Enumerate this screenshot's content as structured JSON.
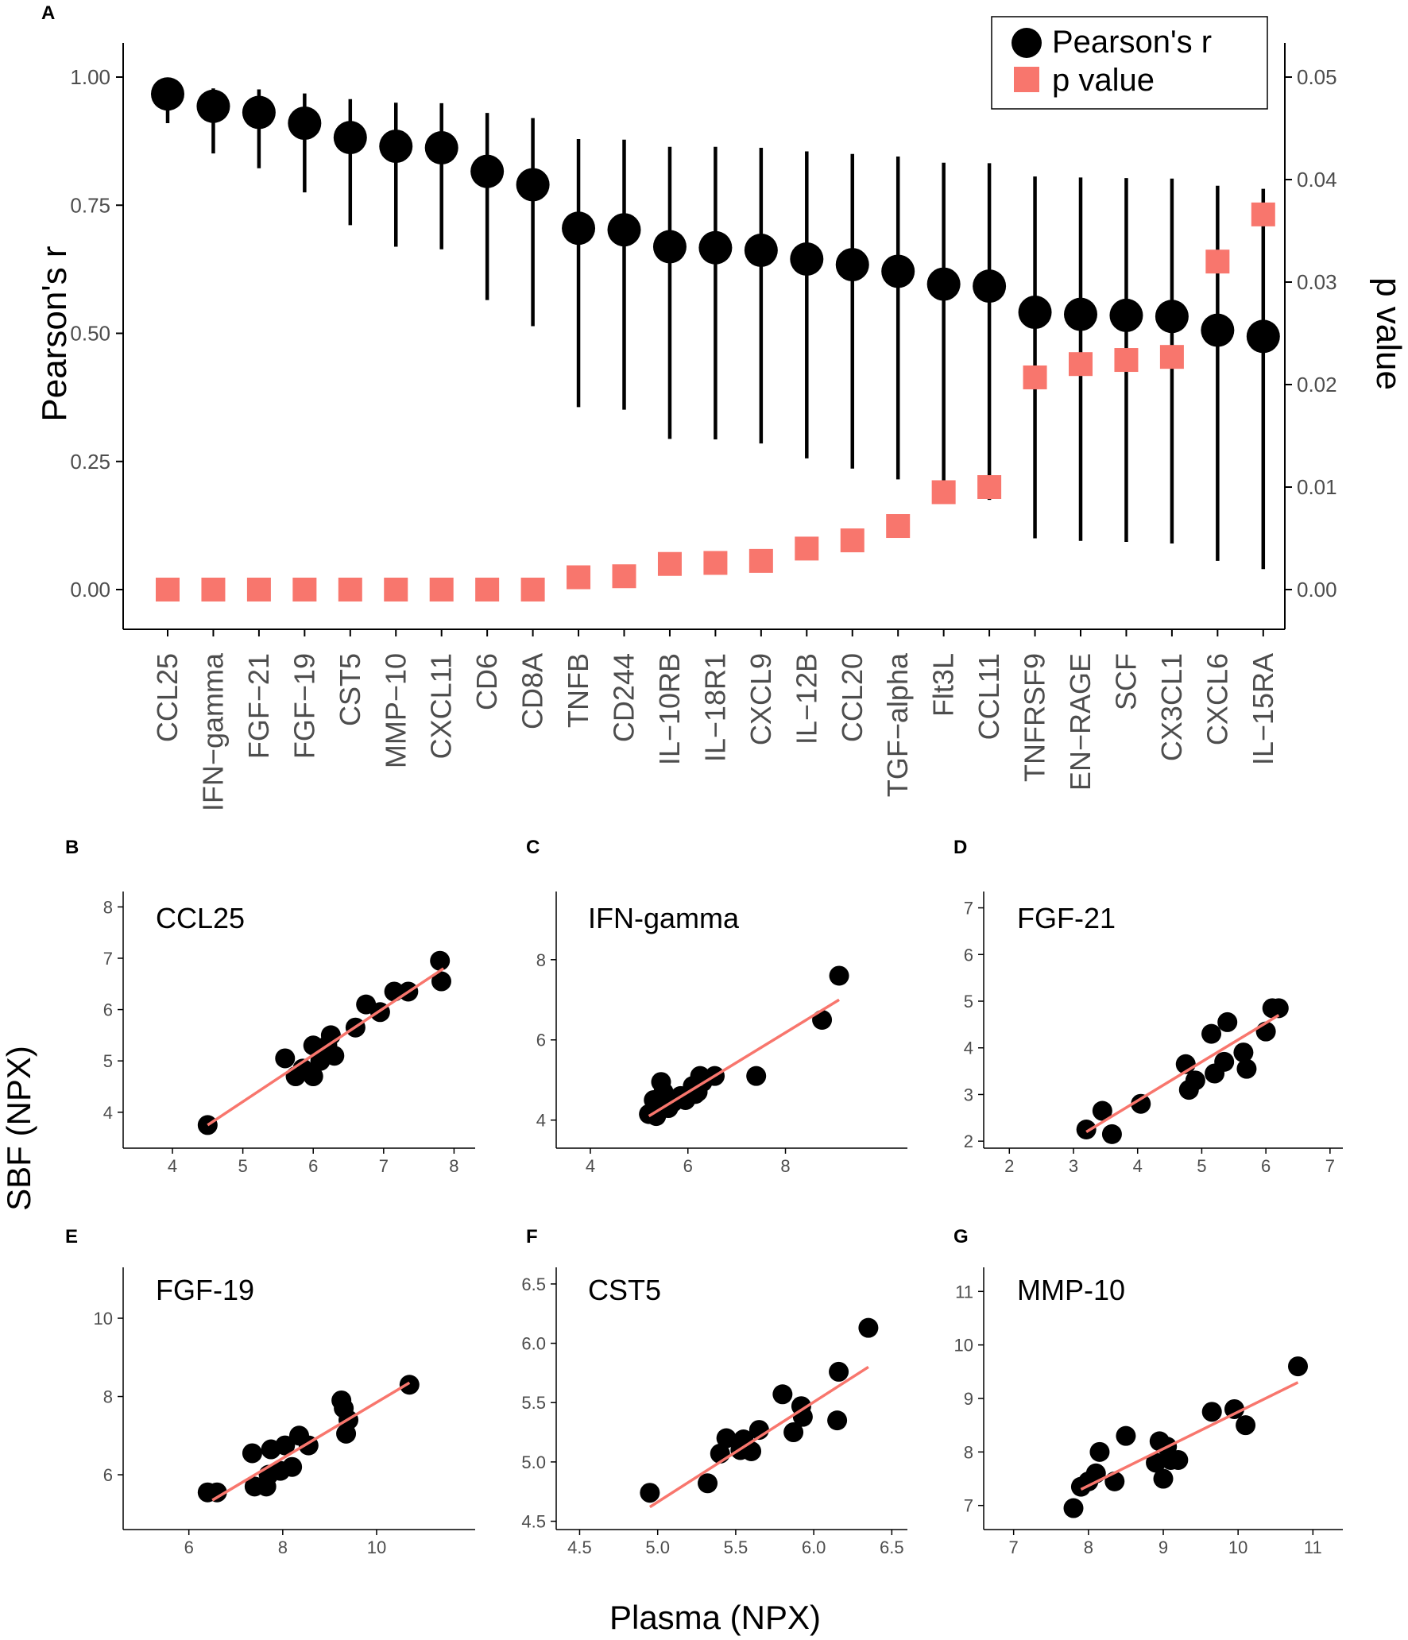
{
  "colors": {
    "point": "#000000",
    "pvalue": "#f8766d",
    "fit": "#f8766d",
    "axis": "#000000"
  },
  "chart_data": [
    {
      "id": "A",
      "type": "dot-errorbar-dual-axis",
      "panel_label": "A",
      "ylabel_left": "Pearson's r",
      "ylabel_right": "p value",
      "ylim_left": [
        0,
        1
      ],
      "yticks_left": [
        "0.00",
        "0.25",
        "0.50",
        "0.75",
        "1.00"
      ],
      "ylim_right": [
        0,
        0.05
      ],
      "yticks_right": [
        "0.00",
        "0.01",
        "0.02",
        "0.03",
        "0.04",
        "0.05"
      ],
      "legend": {
        "r_label": "Pearson's r",
        "p_label": "p value",
        "position": "top-right"
      },
      "categories": [
        "CCL25",
        "IFN−gamma",
        "FGF−21",
        "FGF−19",
        "CST5",
        "MMP−10",
        "CXCL11",
        "CD6",
        "CD8A",
        "TNFB",
        "CD244",
        "IL−10RB",
        "IL−18R1",
        "CXCL9",
        "IL−12B",
        "CCL20",
        "TGF−alpha",
        "Flt3L",
        "CCL11",
        "TNFRSF9",
        "EN−RAGE",
        "SCF",
        "CX3CL1",
        "CXCL6",
        "IL−15RA"
      ],
      "r": [
        0.967,
        0.943,
        0.931,
        0.91,
        0.882,
        0.865,
        0.862,
        0.816,
        0.79,
        0.705,
        0.702,
        0.669,
        0.667,
        0.662,
        0.645,
        0.634,
        0.621,
        0.596,
        0.592,
        0.541,
        0.537,
        0.535,
        0.533,
        0.506,
        0.494
      ],
      "ci_low": [
        0.91,
        0.851,
        0.822,
        0.775,
        0.711,
        0.669,
        0.664,
        0.565,
        0.514,
        0.356,
        0.351,
        0.294,
        0.293,
        0.285,
        0.256,
        0.236,
        0.215,
        0.178,
        0.175,
        0.1,
        0.095,
        0.093,
        0.09,
        0.056,
        0.04
      ],
      "ci_high": [
        0.988,
        0.978,
        0.976,
        0.968,
        0.957,
        0.95,
        0.949,
        0.93,
        0.92,
        0.879,
        0.878,
        0.864,
        0.864,
        0.862,
        0.855,
        0.85,
        0.845,
        0.833,
        0.832,
        0.806,
        0.804,
        0.803,
        0.802,
        0.788,
        0.782
      ],
      "p": [
        0,
        0,
        0,
        0,
        0,
        0,
        0,
        0,
        0,
        0.0012,
        0.0013,
        0.0025,
        0.0026,
        0.0028,
        0.004,
        0.0048,
        0.0062,
        0.0095,
        0.01,
        0.0207,
        0.022,
        0.0224,
        0.0227,
        0.032,
        0.0366
      ]
    },
    {
      "id": "B",
      "type": "scatter",
      "panel_label": "B",
      "title": "CCL25",
      "xlim": [
        3.3,
        8.3
      ],
      "xticks": [
        "4",
        "5",
        "6",
        "7",
        "8"
      ],
      "ylim": [
        3.3,
        8.3
      ],
      "yticks": [
        "4",
        "5",
        "6",
        "7",
        "8"
      ],
      "fit": [
        [
          4.5,
          3.75
        ],
        [
          7.85,
          6.8
        ]
      ],
      "x": [
        4.5,
        5.6,
        5.75,
        5.85,
        6.0,
        6.0,
        6.1,
        6.2,
        6.25,
        6.3,
        6.6,
        6.75,
        6.95,
        7.15,
        7.35,
        7.8,
        7.82
      ],
      "y": [
        3.75,
        5.05,
        4.7,
        4.85,
        4.7,
        5.3,
        5.0,
        5.3,
        5.5,
        5.1,
        5.65,
        6.1,
        5.95,
        6.35,
        6.35,
        6.95,
        6.55
      ]
    },
    {
      "id": "C",
      "type": "scatter",
      "panel_label": "C",
      "title": "IFN-gamma",
      "xlim": [
        3.3,
        10.5
      ],
      "xticks": [
        "4",
        "6",
        "8"
      ],
      "ylim": [
        3.3,
        9.7
      ],
      "yticks": [
        "4",
        "6",
        "8"
      ],
      "fit": [
        [
          5.2,
          4.1
        ],
        [
          9.1,
          7.0
        ]
      ],
      "x": [
        5.2,
        5.3,
        5.35,
        5.5,
        5.45,
        5.6,
        5.7,
        5.85,
        5.95,
        6.1,
        6.15,
        6.2,
        6.25,
        6.3,
        6.55,
        7.4,
        8.75,
        9.1
      ],
      "y": [
        4.15,
        4.5,
        4.1,
        4.7,
        4.95,
        4.3,
        4.45,
        4.6,
        4.5,
        4.85,
        4.65,
        4.7,
        5.1,
        4.95,
        5.1,
        5.1,
        6.5,
        7.6
      ]
    },
    {
      "id": "D",
      "type": "scatter",
      "panel_label": "D",
      "title": "FGF-21",
      "xlim": [
        1.6,
        7.2
      ],
      "xticks": [
        "2",
        "3",
        "4",
        "5",
        "6",
        "7"
      ],
      "ylim": [
        1.85,
        7.35
      ],
      "yticks": [
        "2",
        "3",
        "4",
        "5",
        "6",
        "7"
      ],
      "fit": [
        [
          3.2,
          2.2
        ],
        [
          6.2,
          4.7
        ]
      ],
      "x": [
        3.2,
        3.45,
        3.6,
        4.05,
        4.75,
        4.8,
        4.9,
        5.15,
        5.2,
        5.35,
        5.4,
        5.65,
        5.7,
        6.0,
        6.1,
        6.2
      ],
      "y": [
        2.25,
        2.65,
        2.15,
        2.8,
        3.65,
        3.1,
        3.3,
        4.3,
        3.45,
        3.7,
        4.55,
        3.9,
        3.55,
        4.35,
        4.85,
        4.85
      ]
    },
    {
      "id": "E",
      "type": "scatter",
      "panel_label": "E",
      "title": "FGF-19",
      "xlim": [
        4.6,
        12.1
      ],
      "xticks": [
        "6",
        "8",
        "10"
      ],
      "ylim": [
        4.6,
        11.3
      ],
      "yticks": [
        "6",
        "8",
        "10"
      ],
      "fit": [
        [
          6.5,
          5.35
        ],
        [
          10.7,
          8.35
        ]
      ],
      "x": [
        6.4,
        6.6,
        7.35,
        7.4,
        7.65,
        7.7,
        7.75,
        7.95,
        8.05,
        8.2,
        8.35,
        8.55,
        9.25,
        9.3,
        9.35,
        9.4,
        10.7
      ],
      "y": [
        5.55,
        5.55,
        6.55,
        5.7,
        5.7,
        6.0,
        6.65,
        6.1,
        6.75,
        6.2,
        7.0,
        6.75,
        7.9,
        7.7,
        7.05,
        7.4,
        8.3
      ]
    },
    {
      "id": "F",
      "type": "scatter",
      "panel_label": "F",
      "title": "CST5",
      "xlim": [
        4.35,
        6.6
      ],
      "xticks": [
        "4.5",
        "5.0",
        "5.5",
        "6.0",
        "6.5"
      ],
      "ylim": [
        4.43,
        6.64
      ],
      "yticks": [
        "4.5",
        "5.0",
        "5.5",
        "6.0",
        "6.5"
      ],
      "fit": [
        [
          4.95,
          4.62
        ],
        [
          6.35,
          5.8
        ]
      ],
      "x": [
        4.95,
        5.32,
        5.4,
        5.44,
        5.53,
        5.55,
        5.6,
        5.65,
        5.8,
        5.87,
        5.92,
        5.93,
        6.15,
        6.16,
        6.35
      ],
      "y": [
        4.74,
        4.82,
        5.07,
        5.2,
        5.1,
        5.19,
        5.09,
        5.27,
        5.57,
        5.25,
        5.47,
        5.38,
        5.35,
        5.76,
        6.13
      ]
    },
    {
      "id": "G",
      "type": "scatter",
      "panel_label": "G",
      "title": "MMP-10",
      "xlim": [
        6.6,
        11.4
      ],
      "xticks": [
        "7",
        "8",
        "9",
        "10",
        "11"
      ],
      "ylim": [
        6.55,
        11.45
      ],
      "yticks": [
        "7",
        "8",
        "9",
        "10",
        "11"
      ],
      "fit": [
        [
          7.9,
          7.3
        ],
        [
          10.8,
          9.3
        ]
      ],
      "x": [
        7.8,
        7.9,
        8.0,
        8.1,
        8.15,
        8.35,
        8.5,
        8.9,
        8.95,
        9.0,
        9.05,
        9.1,
        9.2,
        9.65,
        9.95,
        10.1,
        10.8
      ],
      "y": [
        6.95,
        7.35,
        7.45,
        7.6,
        8.0,
        7.45,
        8.3,
        7.8,
        8.2,
        7.5,
        8.1,
        7.85,
        7.85,
        8.75,
        8.8,
        8.5,
        9.6
      ]
    }
  ],
  "shared_axis_labels": {
    "x": "Plasma (NPX)",
    "y": "SBF (NPX)"
  }
}
